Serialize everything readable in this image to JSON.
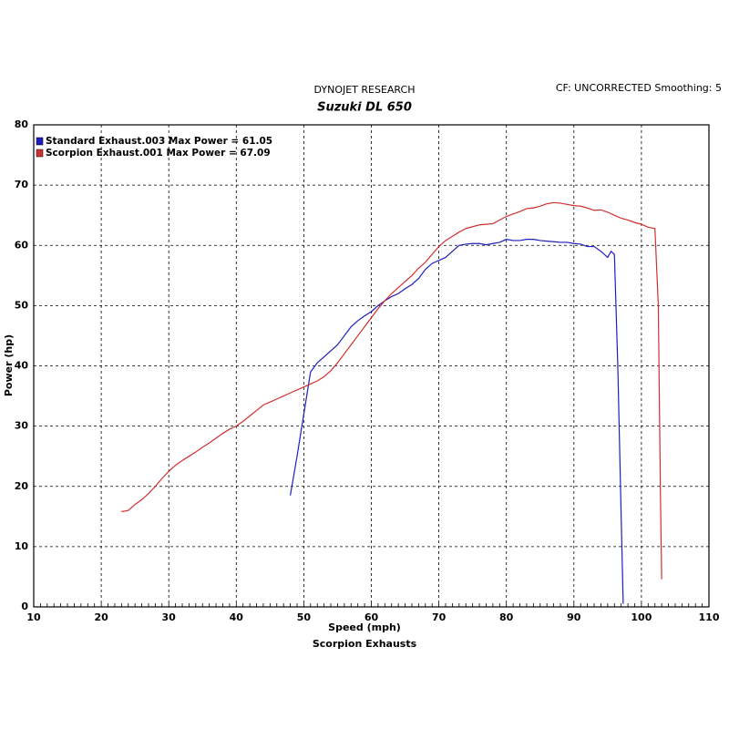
{
  "chart_data": {
    "type": "line",
    "title": "DYNOJET RESEARCH",
    "subtitle": "Suzuki DL 650",
    "annotation": "CF: UNCORRECTED  Smoothing: 5",
    "x_label": "Speed (mph)",
    "y_label": "Power (hp)",
    "footer": "Scorpion Exhausts",
    "xlim": [
      10,
      110
    ],
    "xticks": [
      10,
      20,
      30,
      40,
      50,
      60,
      70,
      80,
      90,
      100,
      110
    ],
    "ylim": [
      0,
      80
    ],
    "yticks": [
      0,
      10,
      20,
      30,
      40,
      50,
      60,
      70,
      80
    ],
    "grid": true,
    "series": [
      {
        "name": "Standard Exhaust.003 Max Power = 61.05",
        "color": "#1f1fbf",
        "x": [
          48,
          49,
          50,
          51,
          52,
          53,
          54,
          55,
          56,
          57,
          58,
          59,
          60,
          61,
          62,
          63,
          64,
          65,
          66,
          67,
          68,
          69,
          70,
          71,
          72,
          73,
          74,
          75,
          76,
          77,
          78,
          79,
          80,
          81,
          82,
          83,
          84,
          85,
          86,
          87,
          88,
          89,
          90,
          91,
          92,
          93,
          94,
          95,
          95.5,
          96,
          96.5,
          97,
          97.3
        ],
        "values": [
          18.5,
          25,
          32,
          39,
          40.5,
          41.5,
          42.5,
          43.5,
          45,
          46.5,
          47.5,
          48.3,
          49,
          50,
          50.8,
          51.5,
          52,
          52.8,
          53.5,
          54.5,
          56,
          57,
          57.5,
          58,
          59,
          60,
          60.2,
          60.3,
          60.3,
          60.1,
          60.3,
          60.5,
          61,
          60.8,
          60.8,
          61,
          61,
          60.8,
          60.7,
          60.6,
          60.5,
          60.5,
          60.3,
          60.2,
          59.8,
          59.8,
          59,
          58,
          59,
          58.5,
          40,
          15,
          0.5
        ]
      },
      {
        "name": "Scorpion Exhaust.001 Max Power = 67.09",
        "color": "#d03030",
        "x": [
          23,
          24,
          25,
          26,
          27,
          28,
          29,
          30,
          31,
          32,
          33,
          34,
          35,
          36,
          37,
          38,
          39,
          40,
          41,
          42,
          43,
          44,
          45,
          46,
          47,
          48,
          49,
          50,
          51,
          52,
          53,
          54,
          55,
          56,
          57,
          58,
          59,
          60,
          61,
          62,
          63,
          64,
          65,
          66,
          67,
          68,
          69,
          70,
          71,
          72,
          73,
          74,
          75,
          76,
          77,
          78,
          79,
          80,
          81,
          82,
          83,
          84,
          85,
          86,
          87,
          88,
          89,
          90,
          91,
          92,
          93,
          94,
          95,
          96,
          97,
          98,
          99,
          100,
          101,
          102,
          102.5,
          102.8,
          103
        ],
        "values": [
          15.8,
          16,
          17,
          17.8,
          18.8,
          20,
          21.3,
          22.5,
          23.5,
          24.3,
          25,
          25.7,
          26.5,
          27.2,
          28,
          28.8,
          29.5,
          30,
          30.8,
          31.7,
          32.6,
          33.5,
          34,
          34.5,
          35,
          35.5,
          36,
          36.5,
          37,
          37.5,
          38.2,
          39.2,
          40.5,
          42,
          43.5,
          45,
          46.5,
          48,
          49.5,
          50.8,
          52,
          53,
          54,
          55,
          56.2,
          57.2,
          58.5,
          59.8,
          60.8,
          61.5,
          62.2,
          62.8,
          63.1,
          63.4,
          63.5,
          63.6,
          64.2,
          64.8,
          65.2,
          65.6,
          66.1,
          66.2,
          66.5,
          66.9,
          67.1,
          67,
          66.8,
          66.6,
          66.5,
          66.2,
          65.8,
          65.9,
          65.5,
          65,
          64.5,
          64.2,
          63.8,
          63.5,
          63,
          62.8,
          50,
          20,
          4.6
        ]
      }
    ]
  }
}
